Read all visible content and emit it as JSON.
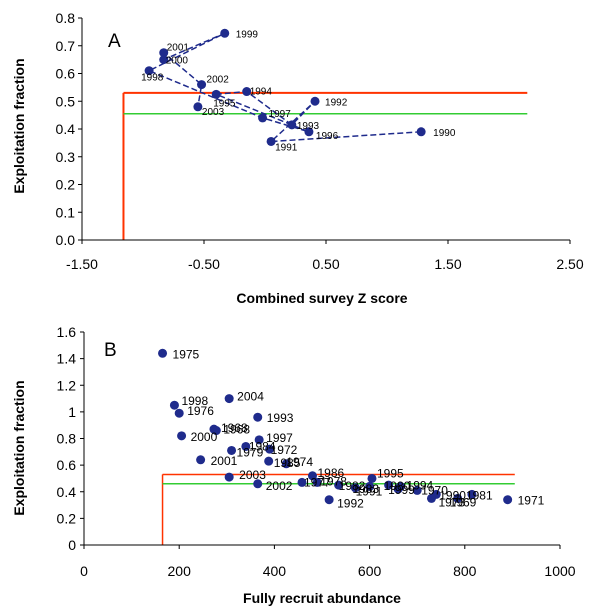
{
  "chart_data": [
    {
      "type": "line",
      "panel_label": "A",
      "xlabel": "Combined survey Z score",
      "ylabel": "Exploitation fraction",
      "xlim": [
        -1.5,
        2.5
      ],
      "ylim": [
        0.0,
        0.8
      ],
      "xticks": [
        "-1.50",
        "-0.50",
        "0.50",
        "1.50",
        "2.50"
      ],
      "yticks": [
        "0.0",
        "0.1",
        "0.2",
        "0.3",
        "0.4",
        "0.5",
        "0.6",
        "0.7",
        "0.8"
      ],
      "grid": false,
      "series": [
        {
          "points": [
            {
              "label": "1990",
              "x": 1.28,
              "y": 0.39
            },
            {
              "label": "1991",
              "x": 0.05,
              "y": 0.355
            },
            {
              "label": "1992",
              "x": 0.41,
              "y": 0.5
            },
            {
              "label": "1993",
              "x": 0.22,
              "y": 0.415
            },
            {
              "label": "1994",
              "x": -0.15,
              "y": 0.535
            },
            {
              "label": "1995",
              "x": -0.4,
              "y": 0.525
            },
            {
              "label": "1996",
              "x": 0.36,
              "y": 0.39
            },
            {
              "label": "1997",
              "x": -0.02,
              "y": 0.44
            },
            {
              "label": "1998",
              "x": -0.95,
              "y": 0.61
            },
            {
              "label": "1999",
              "x": -0.33,
              "y": 0.745
            },
            {
              "label": "2000",
              "x": -0.83,
              "y": 0.65
            },
            {
              "label": "2001",
              "x": -0.83,
              "y": 0.675
            },
            {
              "label": "2002",
              "x": -0.52,
              "y": 0.56
            },
            {
              "label": "2003",
              "x": -0.55,
              "y": 0.48
            }
          ],
          "line_order": [
            "1990",
            "1991",
            "1992",
            "1993",
            "1994",
            "1995",
            "1996",
            "1997",
            "1998",
            "1999",
            "2000",
            "2001",
            "2002",
            "2003"
          ]
        }
      ],
      "reference_lines": {
        "red_horizontal_y": 0.53,
        "green_horizontal_y": 0.455,
        "red_vertical_x": -1.16,
        "horizontal_x_end": 2.15
      },
      "colors": {
        "series": "#1f2b8c",
        "red": "#ff3300",
        "green": "#33cc33"
      }
    },
    {
      "type": "scatter",
      "panel_label": "B",
      "xlabel": "Fully recruit abundance",
      "ylabel": "Exploitation fraction",
      "xlim": [
        0,
        1000
      ],
      "ylim": [
        0,
        1.6
      ],
      "xticks": [
        "0",
        "200",
        "400",
        "600",
        "800",
        "1000"
      ],
      "yticks": [
        "0",
        "0.2",
        "0.4",
        "0.6",
        "0.8",
        "1",
        "1.2",
        "1.4",
        "1.6"
      ],
      "grid": false,
      "points": [
        {
          "label": "1975",
          "x": 165,
          "y": 1.44
        },
        {
          "label": "1998",
          "x": 190,
          "y": 1.05
        },
        {
          "label": "2004",
          "x": 305,
          "y": 1.1
        },
        {
          "label": "1976",
          "x": 200,
          "y": 0.99
        },
        {
          "label": "1993",
          "x": 365,
          "y": 0.96
        },
        {
          "label": "1968",
          "x": 273,
          "y": 0.87
        },
        {
          "label": "1968",
          "x": 278,
          "y": 0.86
        },
        {
          "label": "2000",
          "x": 205,
          "y": 0.82
        },
        {
          "label": "1997",
          "x": 368,
          "y": 0.79
        },
        {
          "label": "1984",
          "x": 340,
          "y": 0.74
        },
        {
          "label": "1979",
          "x": 310,
          "y": 0.71
        },
        {
          "label": "1972",
          "x": 390,
          "y": 0.72
        },
        {
          "label": "2001",
          "x": 245,
          "y": 0.64
        },
        {
          "label": "1985",
          "x": 388,
          "y": 0.63
        },
        {
          "label": "1974",
          "x": 425,
          "y": 0.61
        },
        {
          "label": "2003",
          "x": 305,
          "y": 0.51
        },
        {
          "label": "1986",
          "x": 480,
          "y": 0.52
        },
        {
          "label": "2002",
          "x": 365,
          "y": 0.46
        },
        {
          "label": "1978",
          "x": 490,
          "y": 0.47
        },
        {
          "label": "1977",
          "x": 458,
          "y": 0.47
        },
        {
          "label": "1982",
          "x": 535,
          "y": 0.45
        },
        {
          "label": "1983",
          "x": 570,
          "y": 0.43
        },
        {
          "label": "1995",
          "x": 605,
          "y": 0.5
        },
        {
          "label": "1980",
          "x": 640,
          "y": 0.45
        },
        {
          "label": "1994",
          "x": 665,
          "y": 0.44
        },
        {
          "label": "1999",
          "x": 660,
          "y": 0.42
        },
        {
          "label": "1970",
          "x": 700,
          "y": 0.41
        },
        {
          "label": "1990",
          "x": 740,
          "y": 0.38
        },
        {
          "label": "1973",
          "x": 730,
          "y": 0.35
        },
        {
          "label": "1969",
          "x": 785,
          "y": 0.35
        },
        {
          "label": "1981",
          "x": 815,
          "y": 0.38
        },
        {
          "label": "1971",
          "x": 890,
          "y": 0.34
        },
        {
          "label": "1992",
          "x": 515,
          "y": 0.34
        },
        {
          "label": "1991",
          "x": 600,
          "y": 0.44
        }
      ],
      "reference_lines": {
        "red_horizontal_y": 0.53,
        "green_horizontal_y": 0.46,
        "red_vertical_x": 165,
        "horizontal_x_end": 905
      },
      "colors": {
        "series": "#1f2b8c",
        "red": "#ff3300",
        "green": "#33cc33"
      }
    }
  ]
}
